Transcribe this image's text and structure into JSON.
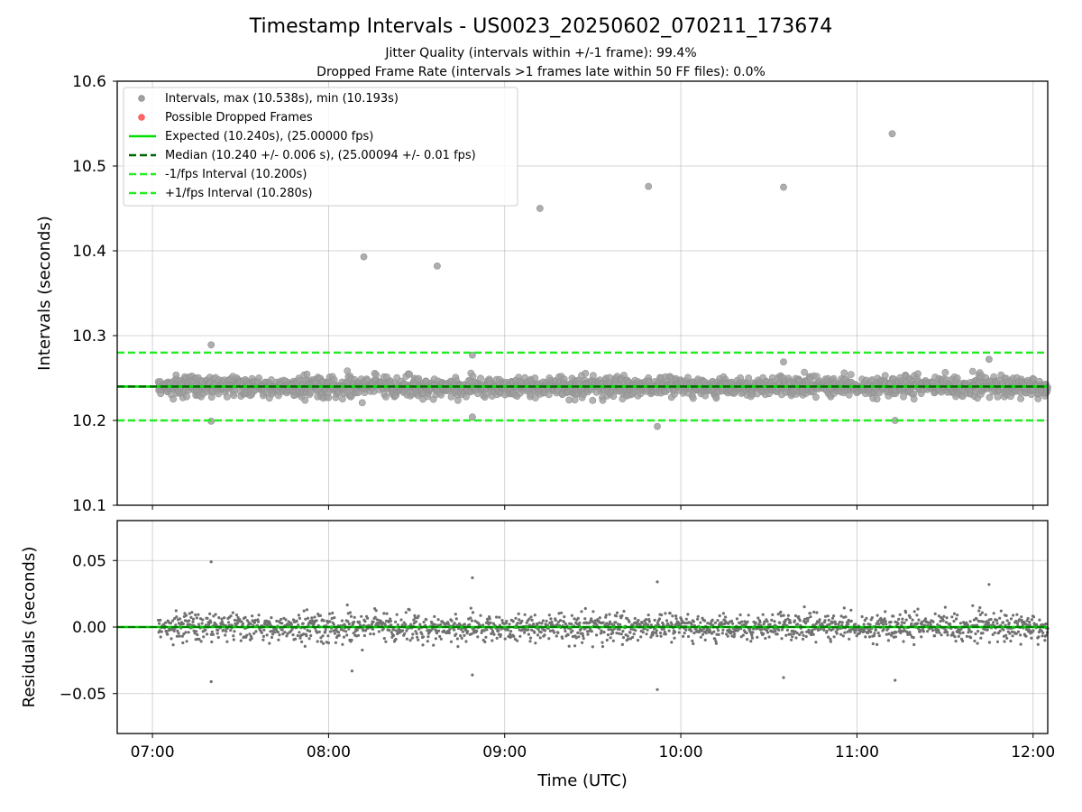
{
  "chart_data": [
    {
      "type": "scatter",
      "title": "Timestamp Intervals - US0023_20250602_070211_173674",
      "subtitle_lines": [
        "Jitter Quality (intervals within +/-1 frame): 99.4%",
        "Dropped Frame Rate (intervals >1 frames late within 50 FF files): 0.0%"
      ],
      "xlabel": "",
      "ylabel": "Intervals (seconds)",
      "xlim": [
        "06:48",
        "12:05"
      ],
      "ylim": [
        10.1,
        10.6
      ],
      "yticks": [
        10.1,
        10.2,
        10.3,
        10.4,
        10.5,
        10.6
      ],
      "ytick_labels": [
        "10.1",
        "10.2",
        "10.3",
        "10.4",
        "10.5",
        "10.6"
      ],
      "xticks": [
        "07:00",
        "08:00",
        "09:00",
        "10:00",
        "11:00",
        "12:00"
      ],
      "grid": true,
      "legend_position": "top-left",
      "legend": [
        {
          "label": "Intervals, max (10.538s), min (10.193s)",
          "kind": "marker",
          "color": "#a0a0a0"
        },
        {
          "label": "Possible Dropped Frames",
          "kind": "marker",
          "color": "#ff6666"
        },
        {
          "label": "Expected (10.240s), (25.00000 fps)",
          "kind": "solid",
          "color": "#00e000"
        },
        {
          "label": "Median (10.240 +/- 0.006 s), (25.00094 +/- 0.01 fps)",
          "kind": "dashed",
          "color": "#006400"
        },
        {
          "label": "-1/fps Interval (10.200s)",
          "kind": "dashed",
          "color": "#22ee22"
        },
        {
          "label": "+1/fps Interval (10.280s)",
          "kind": "dashed",
          "color": "#22ee22"
        }
      ],
      "reference_lines": {
        "expected": 10.24,
        "median": 10.24,
        "minus_one_frame": 10.2,
        "plus_one_frame": 10.28
      },
      "baseline_band": {
        "time_range": [
          "07:02",
          "12:05"
        ],
        "center": 10.24,
        "typical_spread": 0.012
      },
      "outliers": [
        {
          "time": "07:20",
          "value": 10.289
        },
        {
          "time": "07:20",
          "value": 10.199
        },
        {
          "time": "08:12",
          "value": 10.393
        },
        {
          "time": "08:37",
          "value": 10.382
        },
        {
          "time": "08:49",
          "value": 10.277
        },
        {
          "time": "08:49",
          "value": 10.204
        },
        {
          "time": "09:12",
          "value": 10.45
        },
        {
          "time": "09:49",
          "value": 10.476
        },
        {
          "time": "09:52",
          "value": 10.193
        },
        {
          "time": "10:35",
          "value": 10.475
        },
        {
          "time": "10:35",
          "value": 10.269
        },
        {
          "time": "11:12",
          "value": 10.538
        },
        {
          "time": "11:13",
          "value": 10.2
        },
        {
          "time": "11:45",
          "value": 10.272
        }
      ],
      "dropped_frames": [],
      "colors": {
        "points": "#a0a0a0",
        "point_edge": "#909090"
      }
    },
    {
      "type": "scatter",
      "title": "",
      "xlabel": "Time (UTC)",
      "ylabel": "Residuals (seconds)",
      "xlim": [
        "06:48",
        "12:05"
      ],
      "ylim": [
        -0.08,
        0.08
      ],
      "yticks": [
        -0.05,
        0.0,
        0.05
      ],
      "ytick_labels": [
        "−0.05",
        "0.00",
        "0.05"
      ],
      "xticks": [
        "07:00",
        "08:00",
        "09:00",
        "10:00",
        "11:00",
        "12:00"
      ],
      "xtick_labels": [
        "07:00",
        "08:00",
        "09:00",
        "10:00",
        "11:00",
        "12:00"
      ],
      "grid": true,
      "reference_lines": {
        "zero": 0.0
      },
      "outliers": [
        {
          "time": "07:20",
          "value": 0.049
        },
        {
          "time": "07:20",
          "value": -0.041
        },
        {
          "time": "08:08",
          "value": -0.033
        },
        {
          "time": "08:49",
          "value": 0.037
        },
        {
          "time": "08:49",
          "value": -0.036
        },
        {
          "time": "09:52",
          "value": 0.034
        },
        {
          "time": "09:52",
          "value": -0.047
        },
        {
          "time": "10:35",
          "value": -0.038
        },
        {
          "time": "11:13",
          "value": -0.04
        },
        {
          "time": "11:45",
          "value": 0.032
        }
      ],
      "colors": {
        "points": "#707070",
        "zero_line": "#00c800",
        "zero_dash": "#006400"
      }
    }
  ]
}
